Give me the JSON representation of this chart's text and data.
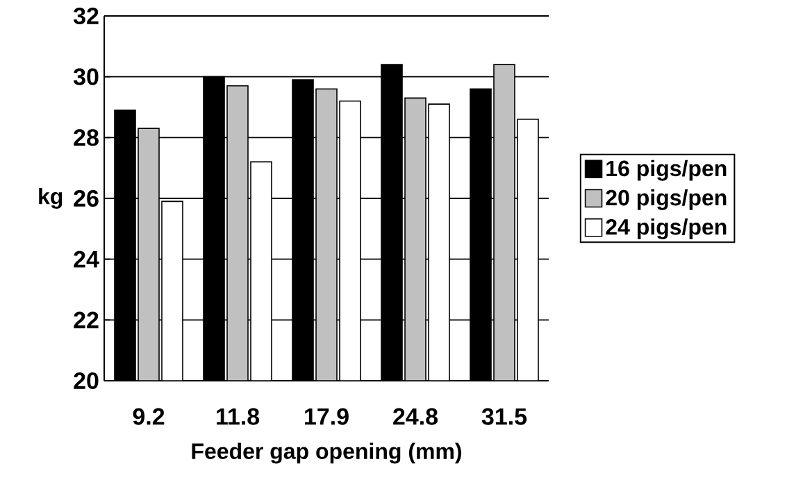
{
  "chart_data": {
    "type": "bar",
    "xlabel": "Feeder gap opening (mm)",
    "ylabel": "kg",
    "categories": [
      "9.2",
      "11.8",
      "17.9",
      "24.8",
      "31.5"
    ],
    "series": [
      {
        "name": "16 pigs/pen",
        "color": "#000000",
        "values": [
          28.9,
          30.0,
          29.9,
          30.4,
          29.6
        ]
      },
      {
        "name": "20 pigs/pen",
        "color": "#c0c0c0",
        "values": [
          28.3,
          29.7,
          29.6,
          29.3,
          30.4
        ]
      },
      {
        "name": "24 pigs/pen",
        "color": "#ffffff",
        "values": [
          25.9,
          27.2,
          29.2,
          29.1,
          28.6
        ]
      }
    ],
    "ylim": [
      20,
      32
    ],
    "yticks": [
      20,
      22,
      24,
      26,
      28,
      30,
      32
    ],
    "grid": "y",
    "legend": "right"
  }
}
